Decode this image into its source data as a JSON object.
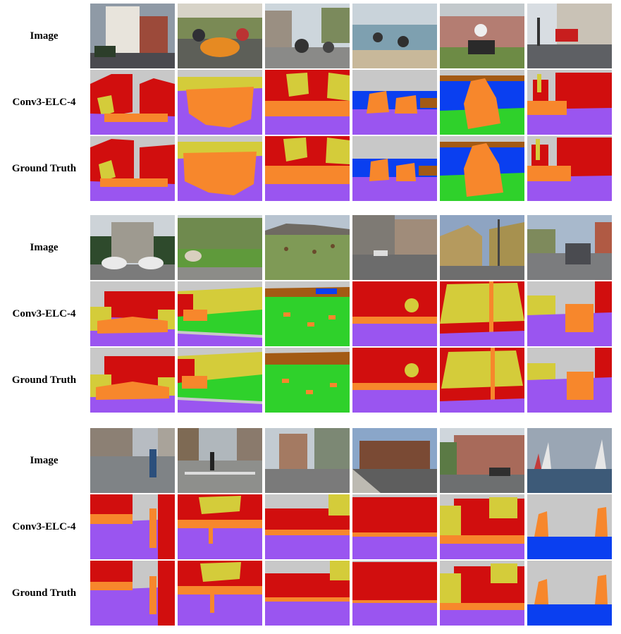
{
  "figure": {
    "row_labels": [
      "Image",
      "Conv3-ELC-4",
      "Ground Truth"
    ],
    "label_colors": {
      "building": "#d10e0e",
      "vegetation": "#d4cc3a",
      "sky": "#c8c8c8",
      "object": "#f7872c",
      "road": "#9a55f0",
      "water": "#0a3ff0",
      "grass": "#2fd12b",
      "mountain": "#a35a14"
    },
    "groups": [
      {
        "images": [
          {
            "icon": "street-building-photo",
            "bg": "#8f9aa6"
          },
          {
            "icon": "motorcycles-photo",
            "bg": "#6f7c5a"
          },
          {
            "icon": "street-motorbikes-photo",
            "bg": "#8c8f8c"
          },
          {
            "icon": "beach-riders-photo",
            "bg": "#9fb0bc"
          },
          {
            "icon": "rider-lakeside-photo",
            "bg": "#8c7d78"
          },
          {
            "icon": "london-street-photo",
            "bg": "#8a8e93"
          }
        ]
      },
      {
        "images": [
          {
            "icon": "police-station-photo",
            "bg": "#9b9e9c"
          },
          {
            "icon": "sheep-field-photo",
            "bg": "#6f8a4e"
          },
          {
            "icon": "grazing-cattle-photo",
            "bg": "#7f9a56"
          },
          {
            "icon": "city-street-photo",
            "bg": "#8d93a0"
          },
          {
            "icon": "intersection-photo",
            "bg": "#8ea4c2"
          },
          {
            "icon": "parked-car-photo",
            "bg": "#93a0b0"
          }
        ]
      },
      {
        "images": [
          {
            "icon": "pedestrian-street-photo",
            "bg": "#88898a"
          },
          {
            "icon": "crosswalk-photo",
            "bg": "#8e9087"
          },
          {
            "icon": "apartment-street-photo",
            "bg": "#9a9b98"
          },
          {
            "icon": "brick-building-photo",
            "bg": "#8aa6c9"
          },
          {
            "icon": "townhouses-photo",
            "bg": "#8a8b86"
          },
          {
            "icon": "sailboats-photo",
            "bg": "#5f7d9a"
          }
        ]
      }
    ]
  }
}
